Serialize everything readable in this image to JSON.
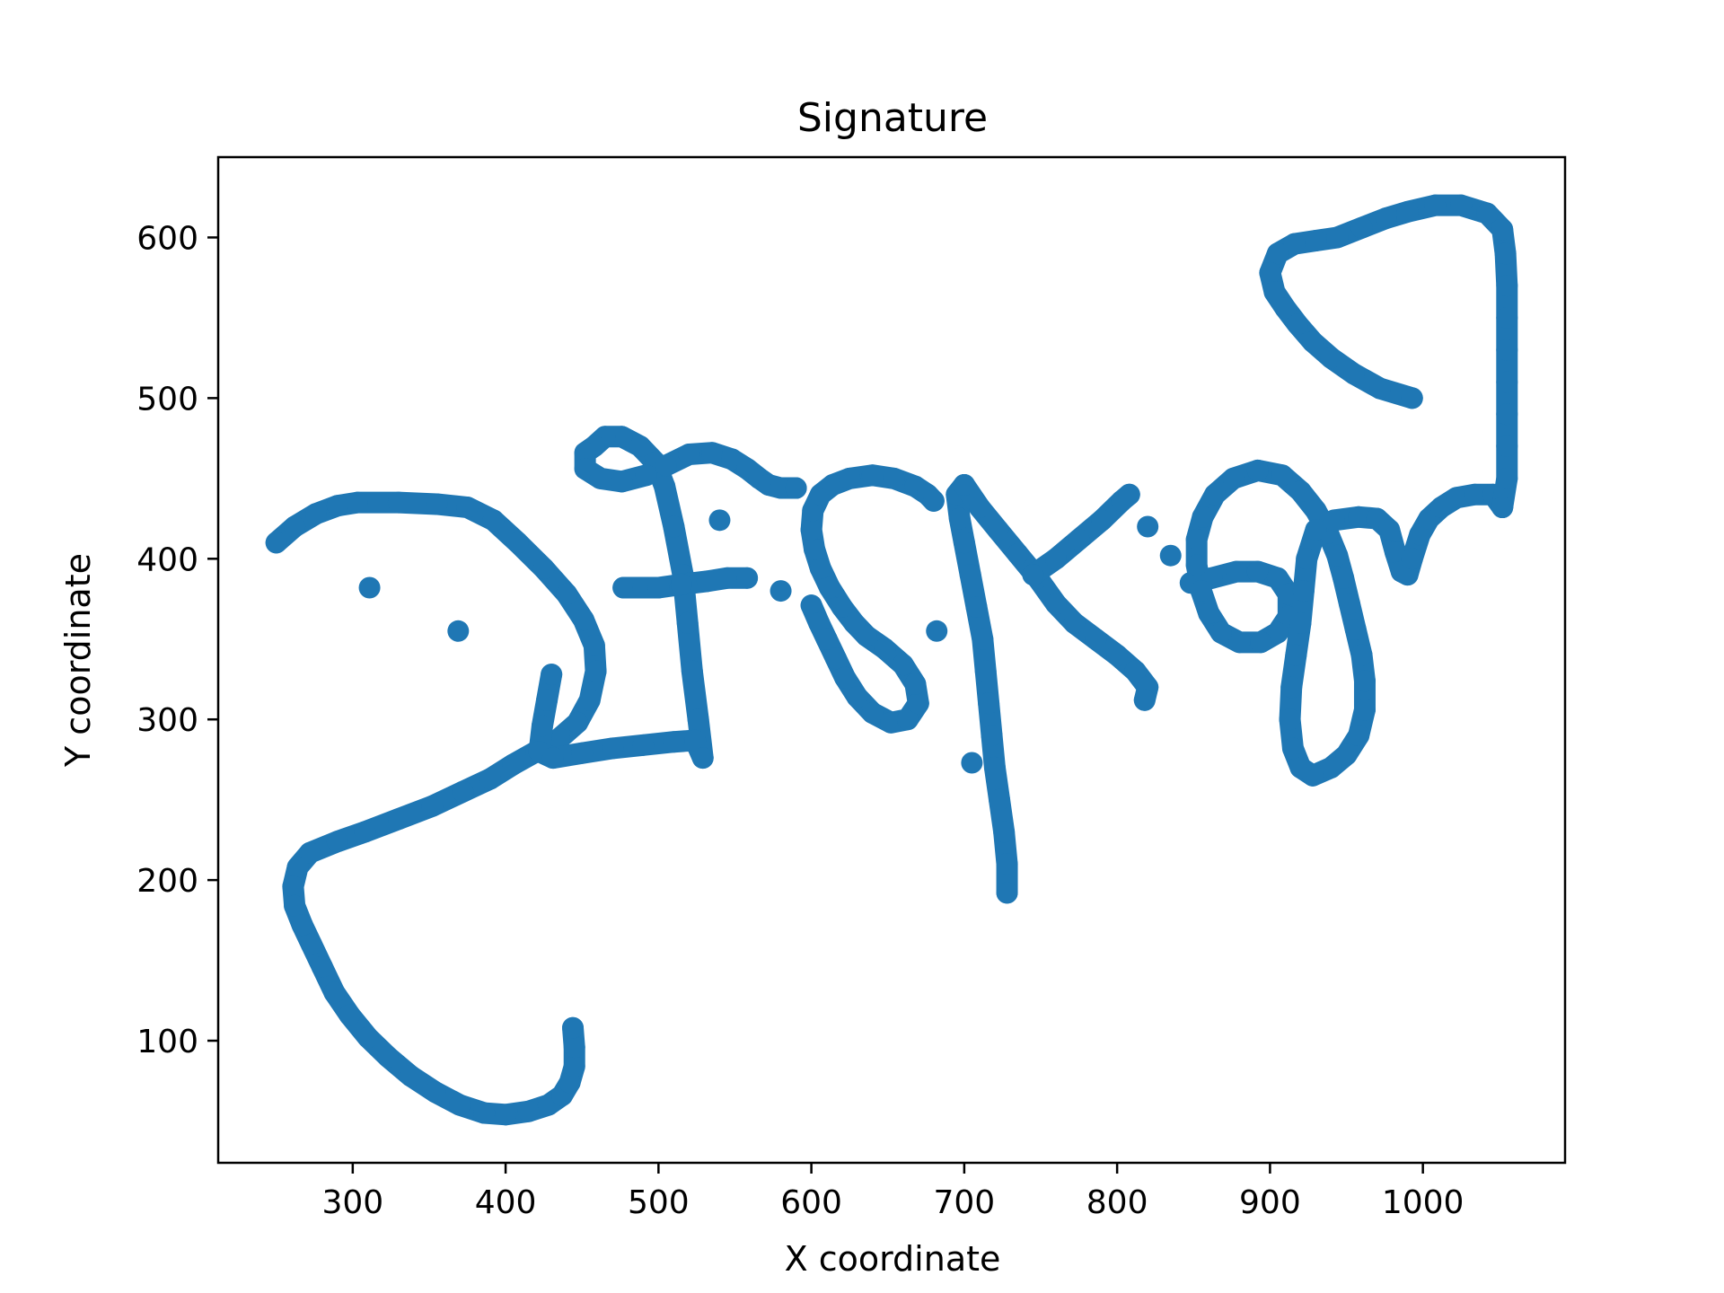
{
  "chart_data": {
    "type": "scatter",
    "title": "Signature",
    "xlabel": "X coordinate",
    "ylabel": "Y coordinate",
    "xlim": [
      212,
      1093
    ],
    "ylim": [
      24,
      650
    ],
    "xticks": [
      300,
      400,
      500,
      600,
      700,
      800,
      900,
      1000
    ],
    "yticks": [
      100,
      200,
      300,
      400,
      500,
      600
    ],
    "grid": false,
    "marker_color": "#1f77b4",
    "strokes": [
      {
        "name": "",
        "points": [
          [
            250,
            410
          ],
          [
            262,
            420
          ],
          [
            276,
            428
          ],
          [
            290,
            433
          ],
          [
            303,
            435
          ],
          [
            330,
            435
          ],
          [
            355,
            434
          ],
          [
            375,
            432
          ],
          [
            392,
            424
          ],
          [
            408,
            410
          ],
          [
            425,
            394
          ],
          [
            440,
            378
          ],
          [
            451,
            362
          ],
          [
            458,
            346
          ],
          [
            459,
            330
          ],
          [
            455,
            312
          ],
          [
            447,
            298
          ],
          [
            435,
            288
          ],
          [
            420,
            280
          ],
          [
            405,
            272
          ],
          [
            390,
            263
          ],
          [
            372,
            255
          ],
          [
            352,
            246
          ],
          [
            330,
            238
          ],
          [
            308,
            230
          ],
          [
            290,
            224
          ],
          [
            272,
            217
          ],
          [
            264,
            208
          ],
          [
            261,
            196
          ],
          [
            262,
            184
          ],
          [
            267,
            172
          ],
          [
            273,
            160
          ],
          [
            280,
            146
          ],
          [
            288,
            130
          ],
          [
            298,
            116
          ],
          [
            310,
            102
          ],
          [
            323,
            90
          ],
          [
            338,
            78
          ],
          [
            354,
            68
          ],
          [
            370,
            60
          ],
          [
            386,
            55
          ],
          [
            400,
            54
          ],
          [
            415,
            56
          ],
          [
            428,
            60
          ],
          [
            437,
            66
          ],
          [
            442,
            74
          ],
          [
            445,
            84
          ],
          [
            445,
            96
          ],
          [
            444,
            108
          ]
        ]
      },
      {
        "name": "",
        "points": [
          [
            311,
            382
          ]
        ]
      },
      {
        "name": "",
        "points": [
          [
            369,
            355
          ]
        ]
      },
      {
        "name": "",
        "points": [
          [
            430,
            328
          ],
          [
            427,
            312
          ],
          [
            424,
            296
          ],
          [
            422,
            280
          ],
          [
            431,
            276
          ],
          [
            450,
            279
          ],
          [
            470,
            282
          ],
          [
            490,
            284
          ],
          [
            510,
            286
          ],
          [
            524,
            287
          ],
          [
            529,
            276
          ],
          [
            526,
            300
          ],
          [
            522,
            330
          ],
          [
            519,
            360
          ],
          [
            516,
            390
          ],
          [
            510,
            420
          ],
          [
            504,
            445
          ],
          [
            498,
            460
          ],
          [
            488,
            470
          ],
          [
            476,
            476
          ],
          [
            465,
            476
          ],
          [
            458,
            470
          ],
          [
            452,
            466
          ],
          [
            452,
            456
          ],
          [
            462,
            450
          ],
          [
            476,
            448
          ],
          [
            492,
            452
          ],
          [
            505,
            458
          ],
          [
            520,
            465
          ],
          [
            535,
            466
          ],
          [
            548,
            462
          ],
          [
            558,
            456
          ],
          [
            566,
            450
          ],
          [
            572,
            446
          ],
          [
            580,
            444
          ],
          [
            590,
            444
          ]
        ]
      },
      {
        "name": "",
        "points": [
          [
            477,
            382
          ],
          [
            490,
            382
          ],
          [
            500,
            382
          ],
          [
            515,
            384
          ],
          [
            532,
            386
          ],
          [
            545,
            388
          ],
          [
            558,
            388
          ]
        ]
      },
      {
        "name": "",
        "points": [
          [
            540,
            424
          ]
        ]
      },
      {
        "name": "",
        "points": [
          [
            580,
            380
          ]
        ]
      },
      {
        "name": "",
        "points": [
          [
            600,
            371
          ],
          [
            605,
            360
          ],
          [
            610,
            350
          ],
          [
            616,
            338
          ],
          [
            622,
            326
          ],
          [
            630,
            314
          ],
          [
            640,
            304
          ],
          [
            652,
            298
          ],
          [
            663,
            300
          ],
          [
            670,
            310
          ],
          [
            668,
            322
          ],
          [
            660,
            334
          ],
          [
            648,
            344
          ],
          [
            636,
            352
          ],
          [
            628,
            360
          ],
          [
            620,
            370
          ],
          [
            612,
            382
          ],
          [
            606,
            394
          ],
          [
            602,
            406
          ],
          [
            600,
            418
          ],
          [
            601,
            430
          ],
          [
            606,
            440
          ],
          [
            614,
            446
          ],
          [
            625,
            450
          ],
          [
            640,
            452
          ],
          [
            654,
            450
          ],
          [
            668,
            445
          ],
          [
            676,
            440
          ],
          [
            680,
            436
          ]
        ]
      },
      {
        "name": "",
        "points": [
          [
            682,
            355
          ]
        ]
      },
      {
        "name": "",
        "points": [
          [
            705,
            273
          ]
        ]
      },
      {
        "name": "",
        "points": [
          [
            728,
            192
          ],
          [
            728,
            210
          ],
          [
            726,
            230
          ],
          [
            723,
            250
          ],
          [
            720,
            270
          ],
          [
            718,
            290
          ],
          [
            716,
            310
          ],
          [
            714,
            330
          ],
          [
            712,
            350
          ],
          [
            708,
            370
          ],
          [
            704,
            390
          ],
          [
            700,
            410
          ],
          [
            697,
            425
          ],
          [
            695,
            440
          ],
          [
            700,
            446
          ]
        ]
      },
      {
        "name": "",
        "points": [
          [
            700,
            446
          ],
          [
            710,
            432
          ],
          [
            722,
            418
          ],
          [
            735,
            403
          ],
          [
            748,
            388
          ],
          [
            760,
            372
          ],
          [
            772,
            360
          ],
          [
            786,
            350
          ],
          [
            800,
            340
          ],
          [
            812,
            330
          ],
          [
            820,
            320
          ],
          [
            818,
            312
          ]
        ]
      },
      {
        "name": "",
        "points": [
          [
            745,
            390
          ],
          [
            760,
            400
          ],
          [
            775,
            412
          ],
          [
            790,
            424
          ],
          [
            803,
            436
          ],
          [
            808,
            440
          ]
        ]
      },
      {
        "name": "",
        "points": [
          [
            820,
            420
          ]
        ]
      },
      {
        "name": "",
        "points": [
          [
            835,
            402
          ]
        ]
      },
      {
        "name": "",
        "points": [
          [
            848,
            385
          ],
          [
            862,
            388
          ],
          [
            878,
            392
          ],
          [
            892,
            392
          ],
          [
            905,
            388
          ],
          [
            912,
            378
          ],
          [
            912,
            364
          ],
          [
            905,
            354
          ],
          [
            894,
            348
          ],
          [
            880,
            348
          ],
          [
            868,
            354
          ],
          [
            860,
            366
          ],
          [
            855,
            380
          ],
          [
            852,
            396
          ],
          [
            852,
            412
          ],
          [
            856,
            426
          ],
          [
            864,
            440
          ],
          [
            876,
            450
          ],
          [
            892,
            455
          ],
          [
            908,
            452
          ],
          [
            920,
            442
          ],
          [
            930,
            430
          ],
          [
            938,
            416
          ],
          [
            944,
            402
          ],
          [
            948,
            388
          ],
          [
            952,
            372
          ],
          [
            956,
            356
          ],
          [
            960,
            340
          ],
          [
            962,
            324
          ],
          [
            962,
            306
          ],
          [
            958,
            290
          ],
          [
            950,
            278
          ],
          [
            940,
            270
          ],
          [
            928,
            265
          ],
          [
            920,
            270
          ],
          [
            915,
            282
          ],
          [
            913,
            300
          ],
          [
            914,
            320
          ],
          [
            917,
            340
          ],
          [
            920,
            360
          ],
          [
            922,
            380
          ],
          [
            924,
            400
          ],
          [
            930,
            418
          ],
          [
            942,
            424
          ],
          [
            958,
            426
          ],
          [
            970,
            425
          ],
          [
            978,
            418
          ],
          [
            982,
            404
          ],
          [
            986,
            392
          ],
          [
            990,
            390
          ],
          [
            993,
            400
          ],
          [
            998,
            415
          ],
          [
            1004,
            425
          ],
          [
            1012,
            432
          ],
          [
            1022,
            438
          ],
          [
            1034,
            440
          ],
          [
            1046,
            440
          ],
          [
            1052,
            432
          ]
        ]
      },
      {
        "name": "",
        "points": [
          [
            1052,
            432
          ],
          [
            1055,
            450
          ],
          [
            1055,
            470
          ],
          [
            1055,
            490
          ],
          [
            1055,
            510
          ],
          [
            1055,
            530
          ],
          [
            1055,
            550
          ],
          [
            1055,
            570
          ],
          [
            1054,
            590
          ],
          [
            1052,
            605
          ],
          [
            1042,
            615
          ],
          [
            1025,
            620
          ],
          [
            1008,
            620
          ],
          [
            990,
            616
          ],
          [
            976,
            612
          ],
          [
            960,
            606
          ],
          [
            944,
            600
          ],
          [
            930,
            598
          ],
          [
            916,
            596
          ],
          [
            905,
            590
          ],
          [
            900,
            578
          ],
          [
            903,
            566
          ],
          [
            910,
            556
          ],
          [
            918,
            546
          ],
          [
            928,
            535
          ],
          [
            940,
            525
          ],
          [
            955,
            515
          ],
          [
            972,
            506
          ],
          [
            993,
            500
          ]
        ]
      }
    ]
  }
}
